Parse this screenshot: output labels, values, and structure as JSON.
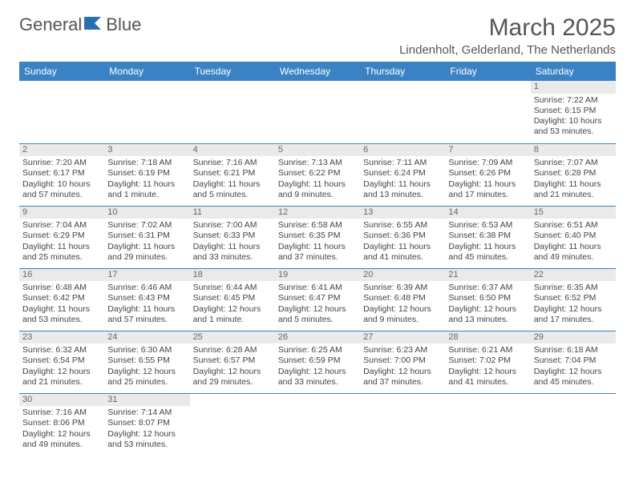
{
  "brand": {
    "part1": "General",
    "part2": "Blue"
  },
  "colors": {
    "header_bg": "#3b82c4",
    "header_text": "#ffffff",
    "daynum_bg": "#eaeaea",
    "border": "#3b82c4",
    "logo_flag": "#2a6fb0",
    "text": "#444444",
    "title": "#555555"
  },
  "title": "March 2025",
  "location": "Lindenholt, Gelderland, The Netherlands",
  "day_headers": [
    "Sunday",
    "Monday",
    "Tuesday",
    "Wednesday",
    "Thursday",
    "Friday",
    "Saturday"
  ],
  "weeks": [
    [
      {
        "n": "",
        "sr": "",
        "ss": "",
        "dl": ""
      },
      {
        "n": "",
        "sr": "",
        "ss": "",
        "dl": ""
      },
      {
        "n": "",
        "sr": "",
        "ss": "",
        "dl": ""
      },
      {
        "n": "",
        "sr": "",
        "ss": "",
        "dl": ""
      },
      {
        "n": "",
        "sr": "",
        "ss": "",
        "dl": ""
      },
      {
        "n": "",
        "sr": "",
        "ss": "",
        "dl": ""
      },
      {
        "n": "1",
        "sr": "Sunrise: 7:22 AM",
        "ss": "Sunset: 6:15 PM",
        "dl": "Daylight: 10 hours and 53 minutes."
      }
    ],
    [
      {
        "n": "2",
        "sr": "Sunrise: 7:20 AM",
        "ss": "Sunset: 6:17 PM",
        "dl": "Daylight: 10 hours and 57 minutes."
      },
      {
        "n": "3",
        "sr": "Sunrise: 7:18 AM",
        "ss": "Sunset: 6:19 PM",
        "dl": "Daylight: 11 hours and 1 minute."
      },
      {
        "n": "4",
        "sr": "Sunrise: 7:16 AM",
        "ss": "Sunset: 6:21 PM",
        "dl": "Daylight: 11 hours and 5 minutes."
      },
      {
        "n": "5",
        "sr": "Sunrise: 7:13 AM",
        "ss": "Sunset: 6:22 PM",
        "dl": "Daylight: 11 hours and 9 minutes."
      },
      {
        "n": "6",
        "sr": "Sunrise: 7:11 AM",
        "ss": "Sunset: 6:24 PM",
        "dl": "Daylight: 11 hours and 13 minutes."
      },
      {
        "n": "7",
        "sr": "Sunrise: 7:09 AM",
        "ss": "Sunset: 6:26 PM",
        "dl": "Daylight: 11 hours and 17 minutes."
      },
      {
        "n": "8",
        "sr": "Sunrise: 7:07 AM",
        "ss": "Sunset: 6:28 PM",
        "dl": "Daylight: 11 hours and 21 minutes."
      }
    ],
    [
      {
        "n": "9",
        "sr": "Sunrise: 7:04 AM",
        "ss": "Sunset: 6:29 PM",
        "dl": "Daylight: 11 hours and 25 minutes."
      },
      {
        "n": "10",
        "sr": "Sunrise: 7:02 AM",
        "ss": "Sunset: 6:31 PM",
        "dl": "Daylight: 11 hours and 29 minutes."
      },
      {
        "n": "11",
        "sr": "Sunrise: 7:00 AM",
        "ss": "Sunset: 6:33 PM",
        "dl": "Daylight: 11 hours and 33 minutes."
      },
      {
        "n": "12",
        "sr": "Sunrise: 6:58 AM",
        "ss": "Sunset: 6:35 PM",
        "dl": "Daylight: 11 hours and 37 minutes."
      },
      {
        "n": "13",
        "sr": "Sunrise: 6:55 AM",
        "ss": "Sunset: 6:36 PM",
        "dl": "Daylight: 11 hours and 41 minutes."
      },
      {
        "n": "14",
        "sr": "Sunrise: 6:53 AM",
        "ss": "Sunset: 6:38 PM",
        "dl": "Daylight: 11 hours and 45 minutes."
      },
      {
        "n": "15",
        "sr": "Sunrise: 6:51 AM",
        "ss": "Sunset: 6:40 PM",
        "dl": "Daylight: 11 hours and 49 minutes."
      }
    ],
    [
      {
        "n": "16",
        "sr": "Sunrise: 6:48 AM",
        "ss": "Sunset: 6:42 PM",
        "dl": "Daylight: 11 hours and 53 minutes."
      },
      {
        "n": "17",
        "sr": "Sunrise: 6:46 AM",
        "ss": "Sunset: 6:43 PM",
        "dl": "Daylight: 11 hours and 57 minutes."
      },
      {
        "n": "18",
        "sr": "Sunrise: 6:44 AM",
        "ss": "Sunset: 6:45 PM",
        "dl": "Daylight: 12 hours and 1 minute."
      },
      {
        "n": "19",
        "sr": "Sunrise: 6:41 AM",
        "ss": "Sunset: 6:47 PM",
        "dl": "Daylight: 12 hours and 5 minutes."
      },
      {
        "n": "20",
        "sr": "Sunrise: 6:39 AM",
        "ss": "Sunset: 6:48 PM",
        "dl": "Daylight: 12 hours and 9 minutes."
      },
      {
        "n": "21",
        "sr": "Sunrise: 6:37 AM",
        "ss": "Sunset: 6:50 PM",
        "dl": "Daylight: 12 hours and 13 minutes."
      },
      {
        "n": "22",
        "sr": "Sunrise: 6:35 AM",
        "ss": "Sunset: 6:52 PM",
        "dl": "Daylight: 12 hours and 17 minutes."
      }
    ],
    [
      {
        "n": "23",
        "sr": "Sunrise: 6:32 AM",
        "ss": "Sunset: 6:54 PM",
        "dl": "Daylight: 12 hours and 21 minutes."
      },
      {
        "n": "24",
        "sr": "Sunrise: 6:30 AM",
        "ss": "Sunset: 6:55 PM",
        "dl": "Daylight: 12 hours and 25 minutes."
      },
      {
        "n": "25",
        "sr": "Sunrise: 6:28 AM",
        "ss": "Sunset: 6:57 PM",
        "dl": "Daylight: 12 hours and 29 minutes."
      },
      {
        "n": "26",
        "sr": "Sunrise: 6:25 AM",
        "ss": "Sunset: 6:59 PM",
        "dl": "Daylight: 12 hours and 33 minutes."
      },
      {
        "n": "27",
        "sr": "Sunrise: 6:23 AM",
        "ss": "Sunset: 7:00 PM",
        "dl": "Daylight: 12 hours and 37 minutes."
      },
      {
        "n": "28",
        "sr": "Sunrise: 6:21 AM",
        "ss": "Sunset: 7:02 PM",
        "dl": "Daylight: 12 hours and 41 minutes."
      },
      {
        "n": "29",
        "sr": "Sunrise: 6:18 AM",
        "ss": "Sunset: 7:04 PM",
        "dl": "Daylight: 12 hours and 45 minutes."
      }
    ],
    [
      {
        "n": "30",
        "sr": "Sunrise: 7:16 AM",
        "ss": "Sunset: 8:06 PM",
        "dl": "Daylight: 12 hours and 49 minutes."
      },
      {
        "n": "31",
        "sr": "Sunrise: 7:14 AM",
        "ss": "Sunset: 8:07 PM",
        "dl": "Daylight: 12 hours and 53 minutes."
      },
      {
        "n": "",
        "sr": "",
        "ss": "",
        "dl": ""
      },
      {
        "n": "",
        "sr": "",
        "ss": "",
        "dl": ""
      },
      {
        "n": "",
        "sr": "",
        "ss": "",
        "dl": ""
      },
      {
        "n": "",
        "sr": "",
        "ss": "",
        "dl": ""
      },
      {
        "n": "",
        "sr": "",
        "ss": "",
        "dl": ""
      }
    ]
  ]
}
